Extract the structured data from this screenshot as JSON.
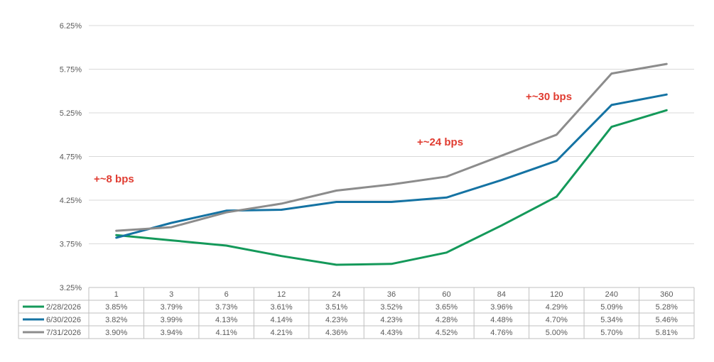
{
  "chart_data": {
    "type": "line",
    "categories": [
      "1",
      "3",
      "6",
      "12",
      "24",
      "36",
      "60",
      "84",
      "120",
      "240",
      "360"
    ],
    "ylim": [
      3.25,
      6.25
    ],
    "yticks": [
      "3.25%",
      "3.75%",
      "4.25%",
      "4.75%",
      "5.25%",
      "5.75%",
      "6.25%"
    ],
    "ytick_values": [
      3.25,
      3.75,
      4.25,
      4.75,
      5.25,
      5.75,
      6.25
    ],
    "grid": true,
    "legend": "table-bottom",
    "series": [
      {
        "name": "2/28/2026",
        "color": "#14995a",
        "values": [
          3.85,
          3.79,
          3.73,
          3.61,
          3.51,
          3.52,
          3.65,
          3.96,
          4.29,
          5.09,
          5.28
        ],
        "labels": [
          "3.85%",
          "3.79%",
          "3.73%",
          "3.61%",
          "3.51%",
          "3.52%",
          "3.65%",
          "3.96%",
          "4.29%",
          "5.09%",
          "5.28%"
        ]
      },
      {
        "name": "6/30/2026",
        "color": "#1573a3",
        "values": [
          3.82,
          3.99,
          4.13,
          4.14,
          4.23,
          4.23,
          4.28,
          4.48,
          4.7,
          5.34,
          5.46
        ],
        "labels": [
          "3.82%",
          "3.99%",
          "4.13%",
          "4.14%",
          "4.23%",
          "4.23%",
          "4.28%",
          "4.48%",
          "4.70%",
          "5.34%",
          "5.46%"
        ]
      },
      {
        "name": "7/31/2026",
        "color": "#8c8c8c",
        "values": [
          3.9,
          3.94,
          4.11,
          4.21,
          4.36,
          4.43,
          4.52,
          4.76,
          5.0,
          5.7,
          5.81
        ],
        "labels": [
          "3.90%",
          "3.94%",
          "4.11%",
          "4.21%",
          "4.36%",
          "4.43%",
          "4.52%",
          "4.76%",
          "5.00%",
          "5.70%",
          "5.81%"
        ]
      }
    ],
    "annotations": [
      {
        "text": "+~8 bps",
        "color": "#e03c31"
      },
      {
        "text": "+~24 bps",
        "color": "#e03c31"
      },
      {
        "text": "+~30 bps",
        "color": "#e03c31"
      }
    ]
  }
}
